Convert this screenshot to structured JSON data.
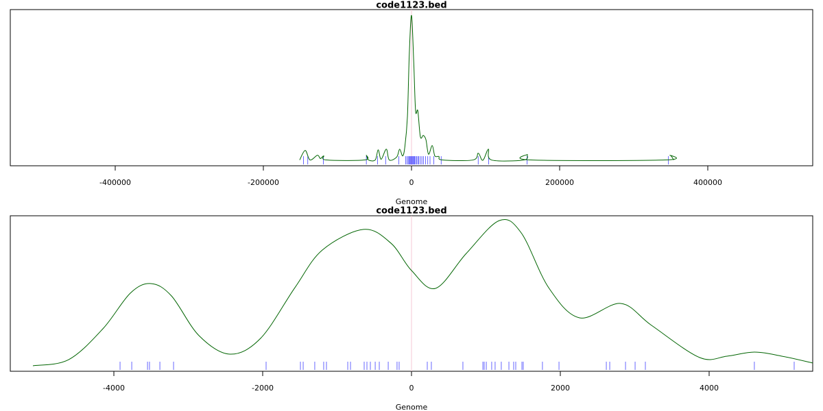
{
  "chart_data": [
    {
      "type": "line",
      "title": "code1123.bed",
      "xlabel": "Genome",
      "xlim": [
        -541667,
        541667
      ],
      "ylim": [
        -0.04,
        1.04
      ],
      "xticks": [
        -400000,
        -200000,
        0,
        200000,
        400000
      ],
      "vline": 0,
      "color": "#006400",
      "x": [
        -151000,
        -143500,
        -137000,
        -127000,
        -123000,
        -118500,
        -115000,
        -63000,
        -61000,
        -58000,
        -49000,
        -45000,
        -41000,
        -34000,
        -30000,
        -20000,
        -16000,
        -12000,
        -9000,
        -5500,
        -3000,
        0,
        3000,
        5500,
        8500,
        12000,
        16000,
        19500,
        23000,
        28000,
        31500,
        37000,
        41500,
        83000,
        90000,
        95000,
        98000,
        104000,
        108000,
        152000,
        156500,
        161000,
        342500,
        349000,
        354000
      ],
      "values": [
        0,
        0.066,
        0,
        0.033,
        0.01,
        0.028,
        0,
        0,
        0.033,
        0,
        0,
        0.07,
        0.005,
        0.075,
        0,
        0.02,
        0.075,
        0.028,
        0.09,
        0.3,
        0.73,
        1.0,
        0.68,
        0.34,
        0.34,
        0.16,
        0.17,
        0.14,
        0.04,
        0.1,
        0.028,
        0.024,
        0,
        0,
        0.047,
        0,
        0.01,
        0.075,
        0,
        0,
        0.038,
        0,
        0,
        0.033,
        0
      ],
      "rug": {
        "color": "#0000ff",
        "values": [
          -146000,
          -140000,
          -119000,
          -61000,
          -46000,
          -35000,
          -17000,
          -8000,
          -6000,
          -4500,
          -3000,
          -2000,
          -1000,
          0,
          1000,
          2000,
          3000,
          4000,
          5500,
          7000,
          8500,
          10000,
          12000,
          14000,
          16000,
          19000,
          22000,
          25000,
          30000,
          40000,
          90000,
          104000,
          156000,
          347000
        ]
      }
    },
    {
      "type": "line",
      "title": "code1123.bed",
      "xlabel": "Genome",
      "xlim": [
        -5392,
        5392
      ],
      "ylim": [
        -0.038,
        1.033
      ],
      "xticks": [
        -4000,
        -2000,
        0,
        2000,
        4000
      ],
      "vline": 0,
      "color": "#006400",
      "x": [
        -5088,
        -4608,
        -4147,
        -3779,
        -3502,
        -3226,
        -2857,
        -2442,
        -2028,
        -1567,
        -1198,
        -645,
        -276,
        0,
        323,
        737,
        1180,
        1475,
        1843,
        2258,
        2811,
        3226,
        3871,
        4240,
        4608,
        4977,
        5392
      ],
      "values": [
        0,
        0.042,
        0.255,
        0.5,
        0.566,
        0.481,
        0.208,
        0.08,
        0.189,
        0.538,
        0.797,
        0.939,
        0.844,
        0.656,
        0.533,
        0.774,
        1.0,
        0.915,
        0.538,
        0.33,
        0.429,
        0.278,
        0.057,
        0.066,
        0.094,
        0.066,
        0.019
      ],
      "rug": {
        "color": "#0000ff",
        "values": [
          -3917,
          -3760,
          -3548,
          -3521,
          -3382,
          -3198,
          -1954,
          -1493,
          -1456,
          -1300,
          -1180,
          -1143,
          -857,
          -820,
          -636,
          -599,
          -553,
          -488,
          -433,
          -313,
          -194,
          -166,
          212,
          267,
          691,
          959,
          977,
          1005,
          1078,
          1124,
          1207,
          1309,
          1373,
          1401,
          1484,
          1502,
          1760,
          1982,
          2618,
          2664,
          2876,
          3005,
          3143,
          4608,
          5143
        ]
      }
    }
  ]
}
